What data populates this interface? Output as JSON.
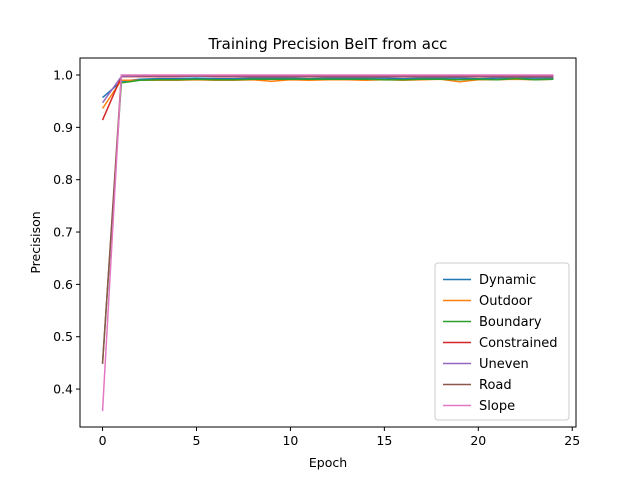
{
  "chart_data": {
    "type": "line",
    "title": "Training Precision BeIT from acc",
    "xlabel": "Epoch",
    "ylabel": "Precisison",
    "xlim": [
      -1.2,
      25.2
    ],
    "ylim": [
      0.3275,
      1.0325
    ],
    "xticks": [
      0,
      5,
      10,
      15,
      20,
      25
    ],
    "yticks": [
      0.4,
      0.5,
      0.6,
      0.7,
      0.8,
      0.9,
      1.0
    ],
    "xtick_labels": [
      "0",
      "5",
      "10",
      "15",
      "20",
      "25"
    ],
    "ytick_labels": [
      "0.4",
      "0.5",
      "0.6",
      "0.7",
      "0.8",
      "0.9",
      "1.0"
    ],
    "grid": false,
    "legend_position": "lower-right",
    "x": [
      0,
      1,
      2,
      3,
      4,
      5,
      6,
      7,
      8,
      9,
      10,
      11,
      12,
      13,
      14,
      15,
      16,
      17,
      18,
      19,
      20,
      21,
      22,
      23,
      24
    ],
    "series": [
      {
        "name": "Dynamic",
        "color": "#1f77b4",
        "values": [
          0.957,
          0.988,
          0.992,
          0.993,
          0.993,
          0.994,
          0.993,
          0.993,
          0.994,
          0.994,
          0.994,
          0.993,
          0.994,
          0.994,
          0.994,
          0.994,
          0.993,
          0.994,
          0.994,
          0.994,
          0.993,
          0.994,
          0.994,
          0.994,
          0.994
        ]
      },
      {
        "name": "Outdoor",
        "color": "#ff7f0e",
        "values": [
          0.936,
          0.99,
          0.99,
          0.99,
          0.99,
          0.991,
          0.99,
          0.99,
          0.991,
          0.988,
          0.991,
          0.99,
          0.991,
          0.991,
          0.99,
          0.991,
          0.99,
          0.991,
          0.992,
          0.987,
          0.991,
          0.991,
          0.992,
          0.991,
          0.992
        ]
      },
      {
        "name": "Boundary",
        "color": "#2ca02c",
        "values": [
          0.45,
          0.985,
          0.99,
          0.991,
          0.991,
          0.992,
          0.991,
          0.991,
          0.992,
          0.992,
          0.992,
          0.992,
          0.992,
          0.992,
          0.992,
          0.991,
          0.991,
          0.992,
          0.992,
          0.991,
          0.992,
          0.991,
          0.993,
          0.991,
          0.992
        ]
      },
      {
        "name": "Constrained",
        "color": "#d62728",
        "values": [
          0.914,
          0.997,
          0.997,
          0.997,
          0.997,
          0.998,
          0.997,
          0.997,
          0.997,
          0.997,
          0.997,
          0.997,
          0.997,
          0.997,
          0.997,
          0.997,
          0.997,
          0.997,
          0.997,
          0.997,
          0.997,
          0.997,
          0.997,
          0.997,
          0.997
        ]
      },
      {
        "name": "Uneven",
        "color": "#9467bd",
        "values": [
          0.947,
          0.997,
          0.998,
          0.998,
          0.998,
          0.998,
          0.998,
          0.998,
          0.998,
          0.998,
          0.998,
          0.998,
          0.998,
          0.998,
          0.998,
          0.998,
          0.998,
          0.998,
          0.998,
          0.998,
          0.998,
          0.998,
          0.998,
          0.998,
          0.998
        ]
      },
      {
        "name": "Road",
        "color": "#8c564b",
        "values": [
          0.448,
          0.999,
          0.999,
          0.999,
          0.999,
          0.999,
          0.999,
          0.999,
          0.999,
          0.999,
          0.999,
          0.999,
          0.999,
          0.999,
          0.999,
          0.999,
          0.999,
          0.999,
          0.999,
          0.999,
          0.999,
          0.999,
          0.999,
          0.999,
          0.999
        ]
      },
      {
        "name": "Slope",
        "color": "#e377c2",
        "values": [
          0.358,
          1.0,
          1.0,
          1.0,
          1.0,
          1.0,
          1.0,
          1.0,
          1.0,
          1.0,
          1.0,
          1.0,
          1.0,
          1.0,
          1.0,
          1.0,
          1.0,
          1.0,
          1.0,
          1.0,
          1.0,
          1.0,
          1.0,
          1.0,
          1.0
        ]
      }
    ]
  }
}
